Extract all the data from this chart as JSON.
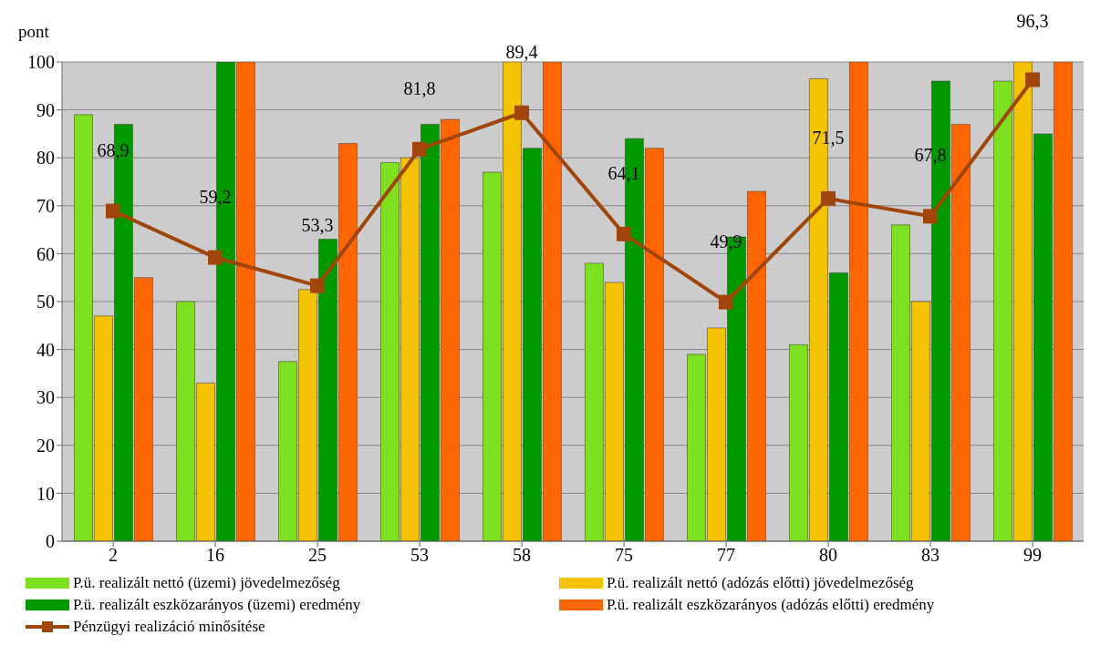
{
  "chart_data": {
    "type": "bar",
    "ylabel": "pont",
    "categories": [
      "2",
      "16",
      "25",
      "53",
      "58",
      "75",
      "77",
      "80",
      "83",
      "99"
    ],
    "ylim": [
      0,
      100
    ],
    "yticks": [
      0,
      10,
      20,
      30,
      40,
      50,
      60,
      70,
      80,
      90,
      100
    ],
    "grid": "y",
    "legend": "bottom",
    "series": [
      {
        "name": "P.ü. realizált nettó (üzemi) jövedelmezőség",
        "color": "#7fe020",
        "values": [
          89,
          50,
          37.5,
          79,
          77,
          58,
          39,
          41,
          66,
          96
        ]
      },
      {
        "name": "P.ü. realizált nettó (adózás előtti) jövedelmezőség",
        "color": "#f5c400",
        "values": [
          47,
          33,
          52.5,
          80,
          100,
          54,
          44.5,
          96.5,
          50,
          100
        ]
      },
      {
        "name": "P.ü. realizált eszközarányos (üzemi) eredmény",
        "color": "#009900",
        "values": [
          87,
          100,
          63,
          87,
          82,
          84,
          63.5,
          56,
          96,
          85
        ]
      },
      {
        "name": "P.ü. realizált eszközarányos (adózás előtti) eredmény",
        "color": "#ff6600",
        "values": [
          55,
          100,
          83,
          88,
          100,
          82,
          73,
          100,
          87,
          100
        ]
      },
      {
        "name": "Pénzügyi realizáció minősítése",
        "type": "line",
        "color": "#a0460a",
        "marker": "square",
        "values": [
          68.9,
          59.2,
          53.3,
          81.8,
          89.4,
          64.1,
          49.9,
          71.5,
          67.8,
          96.3
        ],
        "value_labels": [
          "68,9",
          "59,2",
          "53,3",
          "81,8",
          "89,4",
          "64,1",
          "49,9",
          "71,5",
          "67,8",
          "96,3"
        ]
      }
    ]
  }
}
